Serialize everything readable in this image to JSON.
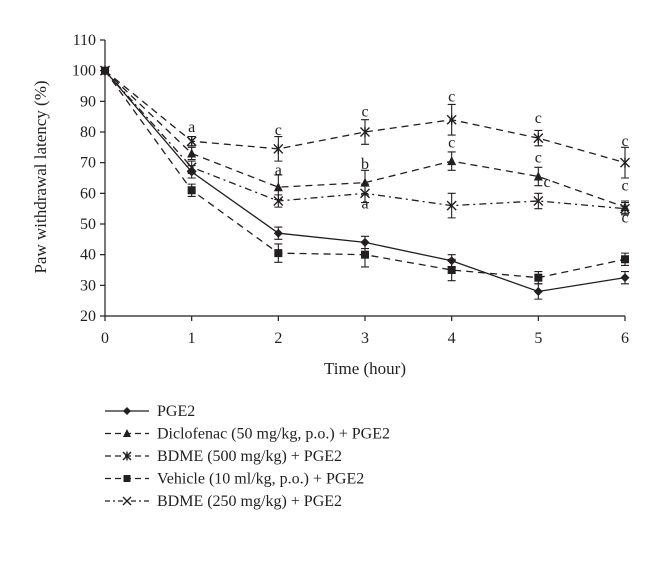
{
  "chart_data": {
    "type": "line",
    "xlabel": "Time (hour)",
    "ylabel": "Paw withdrawal latency (%)",
    "xlim": [
      0,
      6
    ],
    "ylim": [
      20,
      110
    ],
    "x_ticks": [
      0,
      1,
      2,
      3,
      4,
      5,
      6
    ],
    "y_ticks": [
      20,
      30,
      40,
      50,
      60,
      70,
      80,
      90,
      100,
      110
    ],
    "x": [
      0,
      1,
      2,
      3,
      4,
      5,
      6
    ],
    "grid": false,
    "legend_position": "bottom",
    "series": [
      {
        "name": "PGE2",
        "marker": "diamond",
        "dash": "solid",
        "values": [
          100,
          67,
          47,
          44,
          38,
          28,
          32.5
        ],
        "errors": [
          0,
          2,
          2,
          2,
          2,
          2.5,
          2
        ]
      },
      {
        "name": "Diclofenac (50 mg/kg, p.o.) + PGE2",
        "marker": "triangle",
        "dash": "dashed",
        "values": [
          100,
          73,
          62,
          63.5,
          70.5,
          65.5,
          55.5
        ],
        "errors": [
          0,
          2,
          4,
          4,
          3,
          3,
          2
        ]
      },
      {
        "name": "BDME (500 mg/kg) + PGE2",
        "marker": "asterisk",
        "dash": "dashed",
        "values": [
          100,
          77,
          74.5,
          80,
          84,
          78,
          70
        ],
        "errors": [
          0,
          1.5,
          4,
          4,
          5,
          2.5,
          5
        ]
      },
      {
        "name": "Vehicle (10 ml/kg, p.o.) + PGE2",
        "marker": "square",
        "dash": "dashed",
        "values": [
          100,
          61,
          40.5,
          40,
          35,
          32.5,
          38.5
        ],
        "errors": [
          0,
          2,
          3,
          4,
          3.5,
          2,
          2
        ]
      },
      {
        "name": "BDME (250 mg/kg) + PGE2",
        "marker": "x",
        "dash": "dashdot",
        "values": [
          100,
          68.5,
          57.5,
          60,
          56,
          57.5,
          55
        ],
        "errors": [
          0,
          2,
          2,
          3,
          4,
          2.5,
          2
        ]
      }
    ],
    "annotations": [
      {
        "text": "a",
        "x": 1,
        "y": 80
      },
      {
        "text": "c",
        "x": 2,
        "y": 79
      },
      {
        "text": "a",
        "x": 2,
        "y": 66
      },
      {
        "text": "c",
        "x": 3,
        "y": 85
      },
      {
        "text": "b",
        "x": 3,
        "y": 68
      },
      {
        "text": "a",
        "x": 3,
        "y": 55
      },
      {
        "text": "c",
        "x": 4,
        "y": 90
      },
      {
        "text": "c",
        "x": 4,
        "y": 75
      },
      {
        "text": "c",
        "x": 5,
        "y": 83
      },
      {
        "text": "c",
        "x": 5,
        "y": 70
      },
      {
        "text": "c",
        "x": 5.1,
        "y": 62
      },
      {
        "text": "c",
        "x": 6,
        "y": 75.5
      },
      {
        "text": "c",
        "x": 6,
        "y": 61
      },
      {
        "text": "c",
        "x": 6,
        "y": 50.5
      }
    ]
  },
  "legend": {
    "items": [
      "PGE2",
      "Diclofenac (50 mg/kg, p.o.) + PGE2",
      "BDME (500 mg/kg) + PGE2",
      "Vehicle (10 ml/kg, p.o.) + PGE2",
      "BDME (250 mg/kg) + PGE2"
    ]
  },
  "colors": {
    "ink": "#231f20",
    "background": "#ffffff"
  }
}
